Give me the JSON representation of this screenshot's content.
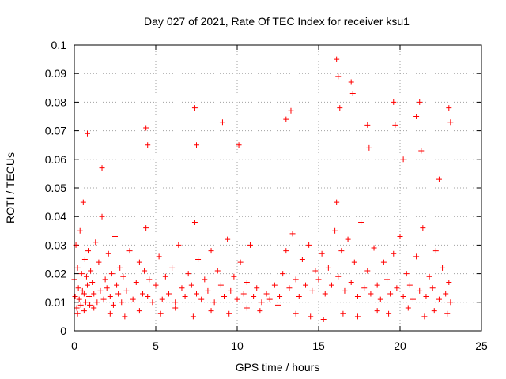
{
  "chart_data": {
    "type": "scatter",
    "title": "Day 027 of 2021, Rate Of TEC Index for receiver ksu1",
    "xlabel": "GPS time / hours",
    "ylabel": "ROTI / TECUs",
    "xlim": [
      0,
      25
    ],
    "ylim": [
      0,
      0.1
    ],
    "xticks": [
      "0",
      "5",
      "10",
      "15",
      "20",
      "25"
    ],
    "yticks": [
      "0",
      "0.01",
      "0.02",
      "0.03",
      "0.04",
      "0.05",
      "0.06",
      "0.07",
      "0.08",
      "0.09",
      "0.1"
    ],
    "grid": true,
    "marker": "+",
    "color": "#ff0000",
    "series": [
      {
        "x": [
          0.0,
          0.05,
          0.1,
          0.15,
          0.2,
          0.25,
          0.3,
          0.35,
          0.4,
          0.45,
          0.5,
          0.55,
          0.6,
          0.65,
          0.7,
          0.75,
          0.8,
          0.85,
          0.9,
          0.95,
          1.0,
          1.1,
          1.2,
          1.3,
          1.4,
          1.5,
          1.6,
          1.7,
          1.8,
          1.9,
          2.0,
          2.1,
          2.2,
          2.3,
          2.4,
          2.5,
          2.6,
          2.7,
          2.8,
          2.9,
          3.0,
          3.2,
          3.4,
          3.6,
          3.8,
          4.0,
          4.2,
          4.3,
          4.4,
          4.5,
          4.6,
          4.8,
          5.0,
          5.2,
          5.4,
          5.6,
          5.8,
          6.0,
          6.2,
          6.4,
          6.6,
          6.8,
          7.0,
          7.2,
          7.4,
          7.5,
          7.6,
          7.8,
          8.0,
          8.2,
          8.4,
          8.6,
          8.8,
          9.0,
          9.2,
          9.4,
          9.6,
          9.8,
          10.0,
          10.2,
          10.4,
          10.6,
          10.8,
          11.0,
          11.2,
          11.5,
          11.8,
          12.0,
          12.3,
          12.6,
          12.8,
          13.0,
          13.2,
          13.4,
          13.6,
          13.8,
          14.0,
          14.2,
          14.4,
          14.6,
          14.8,
          15.0,
          15.2,
          15.4,
          15.6,
          15.8,
          16.0,
          16.1,
          16.2,
          16.4,
          16.6,
          16.8,
          17.0,
          17.2,
          17.4,
          17.6,
          17.8,
          18.0,
          18.2,
          18.4,
          18.6,
          18.8,
          19.0,
          19.2,
          19.4,
          19.6,
          19.8,
          20.0,
          20.2,
          20.4,
          20.6,
          20.8,
          21.0,
          21.2,
          21.4,
          21.6,
          21.8,
          22.0,
          22.2,
          22.4,
          22.6,
          22.8,
          23.0,
          23.1,
          0.8,
          1.7,
          4.4,
          4.5,
          7.4,
          7.5,
          9.1,
          10.1,
          13.0,
          13.3,
          16.1,
          16.2,
          16.3,
          17.0,
          17.1,
          18.0,
          18.1,
          19.6,
          19.7,
          20.2,
          21.0,
          21.2,
          21.3,
          22.4,
          23.0,
          23.1,
          0.2,
          0.6,
          1.2,
          2.2,
          3.1,
          4.0,
          5.3,
          6.2,
          7.3,
          8.4,
          9.5,
          10.6,
          11.4,
          12.5,
          13.6,
          14.5,
          15.3,
          16.5,
          17.4,
          18.6,
          19.3,
          20.5,
          21.5,
          22.1,
          22.9
        ],
        "y": [
          0.018,
          0.012,
          0.03,
          0.008,
          0.022,
          0.015,
          0.011,
          0.035,
          0.009,
          0.02,
          0.014,
          0.045,
          0.013,
          0.025,
          0.01,
          0.019,
          0.016,
          0.028,
          0.012,
          0.009,
          0.021,
          0.017,
          0.013,
          0.031,
          0.01,
          0.024,
          0.014,
          0.04,
          0.011,
          0.018,
          0.015,
          0.027,
          0.012,
          0.02,
          0.009,
          0.033,
          0.016,
          0.013,
          0.022,
          0.01,
          0.019,
          0.014,
          0.028,
          0.011,
          0.017,
          0.024,
          0.013,
          0.021,
          0.036,
          0.012,
          0.018,
          0.01,
          0.016,
          0.026,
          0.011,
          0.019,
          0.013,
          0.022,
          0.01,
          0.03,
          0.015,
          0.012,
          0.02,
          0.016,
          0.038,
          0.013,
          0.025,
          0.011,
          0.018,
          0.014,
          0.028,
          0.01,
          0.021,
          0.016,
          0.012,
          0.032,
          0.014,
          0.019,
          0.011,
          0.024,
          0.013,
          0.017,
          0.03,
          0.012,
          0.015,
          0.01,
          0.013,
          0.011,
          0.016,
          0.012,
          0.02,
          0.028,
          0.015,
          0.034,
          0.018,
          0.012,
          0.025,
          0.016,
          0.03,
          0.014,
          0.021,
          0.018,
          0.027,
          0.013,
          0.022,
          0.016,
          0.035,
          0.045,
          0.019,
          0.028,
          0.014,
          0.032,
          0.017,
          0.024,
          0.012,
          0.038,
          0.015,
          0.021,
          0.013,
          0.029,
          0.016,
          0.011,
          0.024,
          0.018,
          0.013,
          0.027,
          0.015,
          0.033,
          0.012,
          0.02,
          0.016,
          0.011,
          0.026,
          0.014,
          0.036,
          0.012,
          0.019,
          0.015,
          0.028,
          0.011,
          0.022,
          0.013,
          0.017,
          0.01,
          0.069,
          0.057,
          0.071,
          0.065,
          0.078,
          0.065,
          0.073,
          0.065,
          0.074,
          0.077,
          0.095,
          0.089,
          0.078,
          0.087,
          0.083,
          0.072,
          0.064,
          0.08,
          0.072,
          0.06,
          0.075,
          0.08,
          0.063,
          0.053,
          0.078,
          0.073,
          0.006,
          0.007,
          0.008,
          0.006,
          0.005,
          0.007,
          0.006,
          0.008,
          0.005,
          0.007,
          0.006,
          0.008,
          0.007,
          0.009,
          0.006,
          0.005,
          0.004,
          0.006,
          0.005,
          0.007,
          0.006,
          0.008,
          0.005,
          0.007,
          0.006
        ]
      }
    ]
  }
}
